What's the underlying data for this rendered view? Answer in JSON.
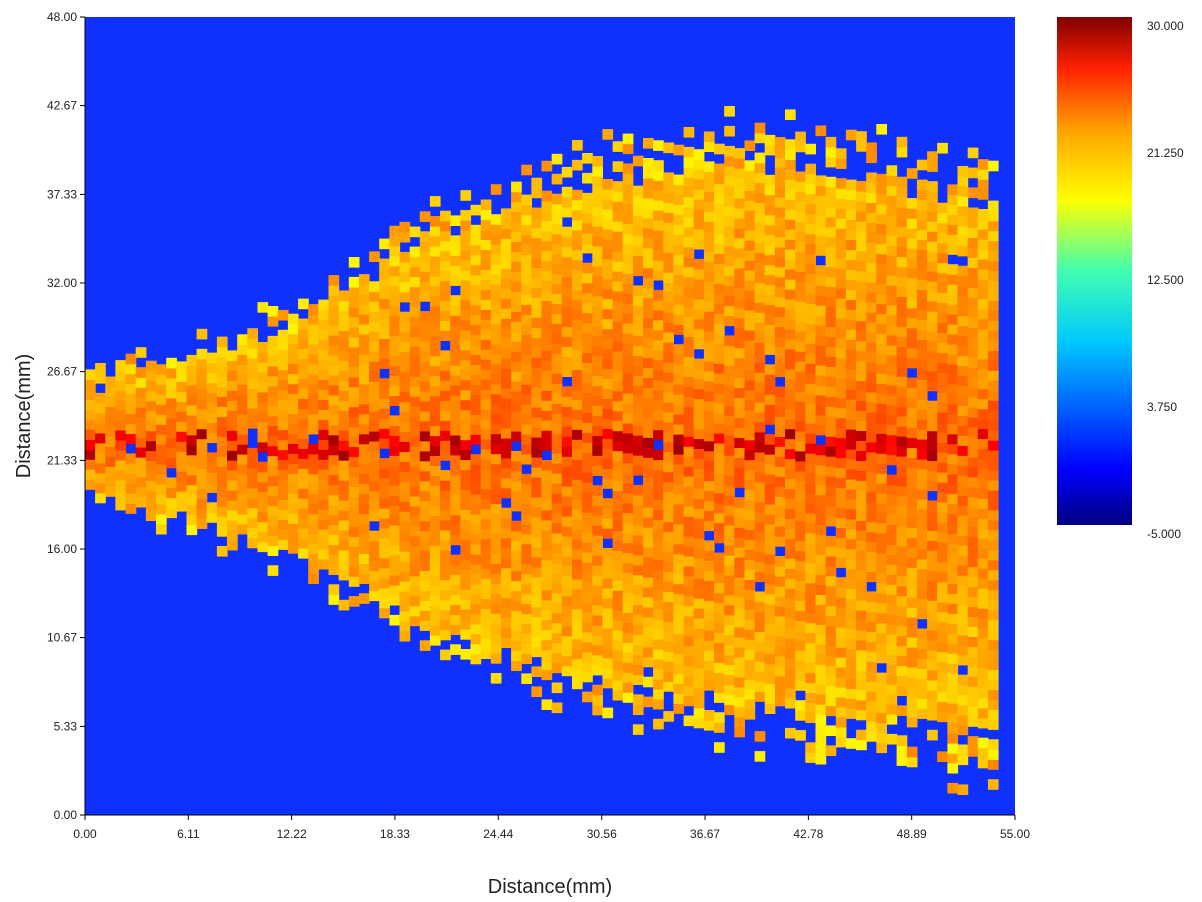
{
  "chart_data": {
    "type": "heatmap",
    "title": "",
    "xlabel": "Distance(mm)",
    "ylabel": "Distance(mm)",
    "xlim": [
      0,
      55
    ],
    "ylim": [
      0,
      48
    ],
    "x_ticks": [
      "0.00",
      "6.11",
      "12.22",
      "18.33",
      "24.44",
      "30.56",
      "36.67",
      "42.78",
      "48.89",
      "55.00"
    ],
    "y_ticks": [
      "0.00",
      "5.33",
      "10.67",
      "16.00",
      "21.33",
      "26.67",
      "32.00",
      "37.33",
      "42.67",
      "48.00"
    ],
    "colorbar": {
      "range": [
        -5,
        30
      ],
      "ticks": [
        "30.000",
        "21.250",
        "12.500",
        "3.750",
        "-5.000"
      ],
      "colormap": "jet"
    },
    "background_value": -5,
    "plume": {
      "description_values": "spray plume originating at x=0, centered near y=22 mm, widening downstream",
      "center_y": 22.0,
      "start_x": 0.0,
      "end_x": 54.0,
      "half_width_profile": [
        {
          "x": 0.0,
          "upper": 25.5,
          "lower": 19.3
        },
        {
          "x": 6.11,
          "upper": 27.2,
          "lower": 17.5
        },
        {
          "x": 12.22,
          "upper": 29.0,
          "lower": 15.5
        },
        {
          "x": 15.3,
          "upper": 31.5,
          "lower": 14.0
        },
        {
          "x": 18.33,
          "upper": 33.5,
          "lower": 12.0
        },
        {
          "x": 24.44,
          "upper": 36.0,
          "lower": 9.5
        },
        {
          "x": 30.56,
          "upper": 37.5,
          "lower": 8.0
        },
        {
          "x": 36.67,
          "upper": 38.5,
          "lower": 7.0
        },
        {
          "x": 42.78,
          "upper": 38.5,
          "lower": 6.0
        },
        {
          "x": 48.89,
          "upper": 37.0,
          "lower": 5.5
        },
        {
          "x": 54.0,
          "upper": 36.0,
          "lower": 5.0
        }
      ],
      "core_value": 22,
      "edge_value": 19,
      "centerline_value": 27
    }
  }
}
